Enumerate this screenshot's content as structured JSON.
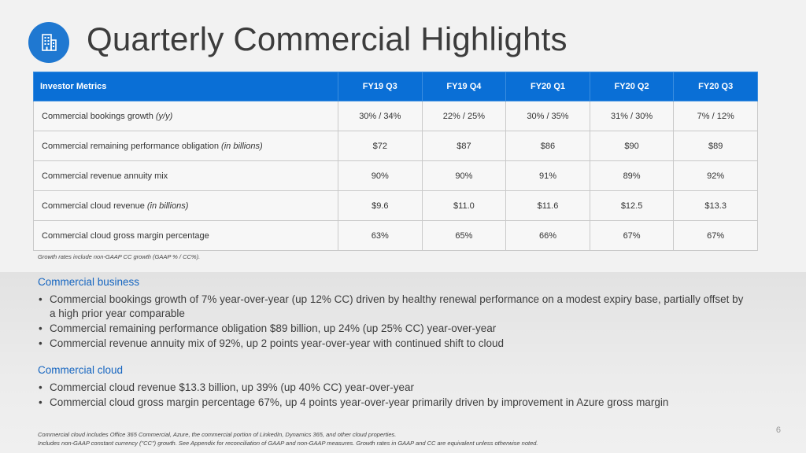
{
  "slide": {
    "title": "Quarterly Commercial Highlights",
    "logo_icon": "building-icon",
    "accent_color": "#0a6fd6",
    "page_number": "6"
  },
  "table": {
    "headers": [
      "Investor Metrics",
      "FY19 Q3",
      "FY19 Q4",
      "FY20 Q1",
      "FY20 Q2",
      "FY20 Q3"
    ],
    "rows": [
      {
        "label": "Commercial bookings growth ",
        "suffix": "(y/y)",
        "values": [
          "30% / 34%",
          "22% / 25%",
          "30% / 35%",
          "31% / 30%",
          "7% / 12%"
        ]
      },
      {
        "label": "Commercial remaining performance obligation ",
        "suffix": "(in billions)",
        "values": [
          "$72",
          "$87",
          "$86",
          "$90",
          "$89"
        ]
      },
      {
        "label": "Commercial revenue annuity mix",
        "suffix": "",
        "values": [
          "90%",
          "90%",
          "91%",
          "89%",
          "92%"
        ]
      },
      {
        "label": "Commercial cloud revenue ",
        "suffix": "(in billions)",
        "values": [
          "$9.6",
          "$11.0",
          "$11.6",
          "$12.5",
          "$13.3"
        ]
      },
      {
        "label": "Commercial cloud gross margin percentage",
        "suffix": "",
        "values": [
          "63%",
          "65%",
          "66%",
          "67%",
          "67%"
        ]
      }
    ],
    "note": "Growth rates include non-GAAP CC growth (GAAP % / CC%)."
  },
  "sections": [
    {
      "heading": "Commercial business",
      "bullets": [
        "Commercial bookings growth of 7% year-over-year (up 12% CC) driven by healthy renewal performance on a modest expiry base, partially offset by a high prior year comparable",
        "Commercial remaining performance obligation $89 billion, up 24% (up 25% CC) year-over-year",
        "Commercial revenue annuity mix of 92%, up 2 points year-over-year with continued shift to cloud"
      ]
    },
    {
      "heading": "Commercial cloud",
      "bullets": [
        "Commercial cloud revenue $13.3 billion, up 39% (up 40% CC) year-over-year",
        "Commercial cloud gross margin percentage 67%, up 4 points year-over-year primarily driven by improvement in Azure gross margin"
      ]
    }
  ],
  "footnotes": [
    "Commercial cloud includes Office 365 Commercial, Azure, the commercial portion of LinkedIn, Dynamics 365, and other cloud properties.",
    "Includes non-GAAP constant currency (\"CC\") growth. See Appendix for reconciliation of GAAP and non-GAAP measures. Growth rates in GAAP and CC are equivalent unless otherwise noted."
  ]
}
